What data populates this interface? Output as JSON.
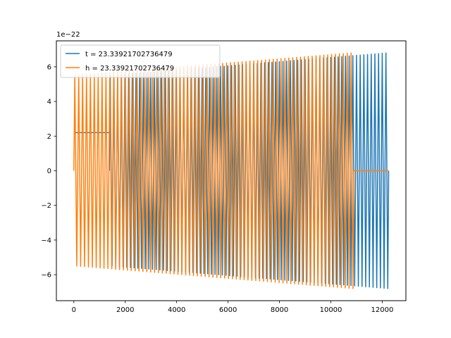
{
  "chart_data": {
    "type": "line",
    "title": "",
    "xlabel": "",
    "ylabel": "",
    "y_offset_text": "1e−22",
    "xlim": [
      -680,
      12920
    ],
    "ylim": [
      -7.5,
      7.5
    ],
    "x_ticks": [
      0,
      2000,
      4000,
      6000,
      8000,
      10000,
      12000
    ],
    "x_tick_labels": [
      "0",
      "2000",
      "4000",
      "6000",
      "8000",
      "10000",
      "12000"
    ],
    "y_ticks": [
      -6,
      -4,
      -2,
      0,
      2,
      4,
      6
    ],
    "y_tick_labels": [
      "−6",
      "−4",
      "−2",
      "0",
      "2",
      "4",
      "6"
    ],
    "grid": false,
    "legend_position": "top-left",
    "series": [
      {
        "name": "t = 23.33921702736479",
        "color": "#1f77b4",
        "cycles": 76,
        "segments": [
          {
            "x": [
              0,
              1380
            ],
            "value": 2.2,
            "flat": true
          },
          {
            "x": [
              1380,
              12250
            ],
            "amplitude_start": 5.5,
            "amplitude_end": 6.8
          }
        ]
      },
      {
        "name": "h = 23.33921702736479",
        "color": "#ff7f0e",
        "cycles": 72,
        "segments": [
          {
            "x": [
              0,
              10900
            ],
            "amplitude_start": 5.5,
            "amplitude_end": 6.8
          },
          {
            "x": [
              10900,
              12250
            ],
            "value": 0,
            "flat": true
          }
        ]
      }
    ]
  }
}
